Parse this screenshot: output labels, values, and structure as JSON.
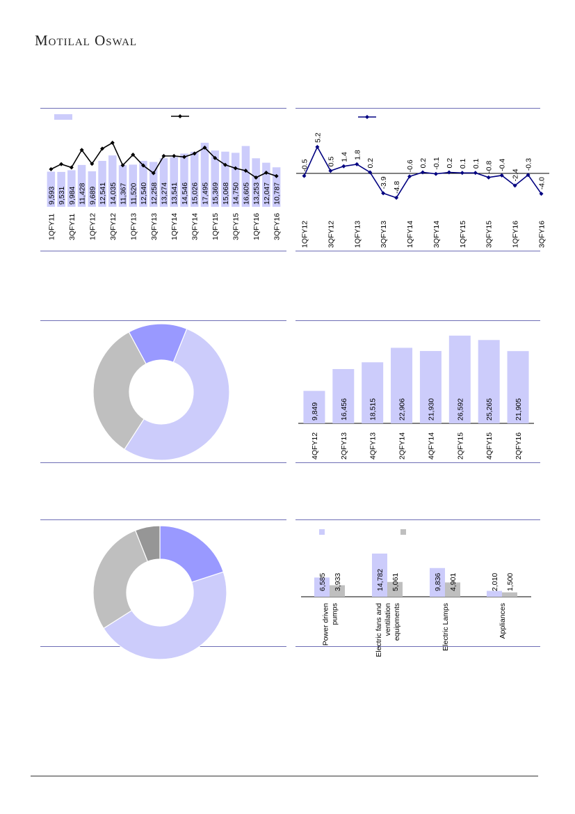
{
  "brand": "Motilal Oswal",
  "colors": {
    "bar": "#ccccfb",
    "bar2": "#9999ff",
    "grey": "#bfbfbf",
    "darkgrey": "#969696",
    "line1": "#000000",
    "line2": "#000080",
    "rule": "#6d6db5"
  },
  "chart_data": [
    {
      "type": "bar",
      "id": "chart1",
      "legend": [
        "",
        ""
      ],
      "categories": [
        "1QFY11",
        "2QFY11",
        "3QFY11",
        "4QFY11",
        "1QFY12",
        "2QFY12",
        "3QFY12",
        "4QFY12",
        "1QFY13",
        "2QFY13",
        "3QFY13",
        "4QFY13",
        "1QFY14",
        "2QFY14",
        "3QFY14",
        "4QFY14",
        "1QFY15",
        "2QFY15",
        "3QFY15",
        "4QFY15",
        "1QFY16",
        "2QFY16",
        "3QFY16"
      ],
      "tick_labels": [
        "1QFY11",
        "",
        "3QFY11",
        "",
        "1QFY12",
        "",
        "3QFY12",
        "",
        "1QFY13",
        "",
        "3QFY13",
        "",
        "1QFY14",
        "",
        "3QFY14",
        "",
        "1QFY15",
        "",
        "3QFY15",
        "",
        "1QFY16",
        "",
        "3QFY16"
      ],
      "series": [
        {
          "values": [
            9593,
            9531,
            9984,
            11428,
            9689,
            12541,
            14035,
            11367,
            11520,
            12540,
            12258,
            13274,
            13541,
            14546,
            15026,
            17495,
            15369,
            15068,
            14750,
            16605,
            13253,
            12047,
            10787
          ],
          "labels": [
            "9,593",
            "9,531",
            "9,984",
            "11,428",
            "9,689",
            "12,541",
            "14,035",
            "11,367",
            "11,520",
            "12,540",
            "12,258",
            "13,274",
            "13,541",
            "14,546",
            "15,026",
            "17,495",
            "15,369",
            "15,068",
            "14,750",
            "16,605",
            "13,253",
            "12,047",
            "10,787"
          ]
        },
        {
          "type": "line",
          "values": [
            5.0,
            10.2,
            6.8,
            24.6,
            10.5,
            26.0,
            32.0,
            9.0,
            19.8,
            8.8,
            1.0,
            18.5,
            18.5,
            17.5,
            21.0,
            27.0,
            16.5,
            9.5,
            6.0,
            3.5,
            -3.5,
            1.5,
            -2.0
          ]
        }
      ]
    },
    {
      "type": "line",
      "id": "chart2",
      "legend": [
        ""
      ],
      "categories": [
        "1QFY12",
        "2QFY12",
        "3QFY12",
        "4QFY12",
        "1QFY13",
        "2QFY13",
        "3QFY13",
        "4QFY13",
        "1QFY14",
        "2QFY14",
        "3QFY14",
        "4QFY14",
        "1QFY15",
        "2QFY15",
        "3QFY15",
        "4QFY15",
        "1QFY16",
        "2QFY16",
        "3QFY16"
      ],
      "tick_labels": [
        "1QFY12",
        "",
        "3QFY12",
        "",
        "1QFY13",
        "",
        "3QFY13",
        "",
        "1QFY14",
        "",
        "3QFY14",
        "",
        "1QFY15",
        "",
        "3QFY15",
        "",
        "1QFY16",
        "",
        "3QFY16"
      ],
      "values": [
        -0.5,
        5.2,
        0.5,
        1.4,
        1.8,
        0.2,
        -3.9,
        -4.8,
        -0.6,
        0.2,
        -0.1,
        0.2,
        0.1,
        0.1,
        -0.8,
        -0.4,
        -2.4,
        -0.3,
        -4.0
      ],
      "labels": [
        "-0.5",
        "5.2",
        "0.5",
        "1.4",
        "1.8",
        "0.2",
        "-3.9",
        "-4.8",
        "-0.6",
        "0.2",
        "-0.1",
        "0.2",
        "0.1",
        "0.1",
        "-0.8",
        "-0.4",
        "-2.4",
        "-0.3",
        "-4.0"
      ]
    },
    {
      "type": "pie",
      "id": "chart3",
      "values": [
        53,
        33,
        14
      ],
      "colors": [
        "#ccccfb",
        "#bfbfbf",
        "#9999ff"
      ]
    },
    {
      "type": "bar",
      "id": "chart4",
      "categories": [
        "4QFY12",
        "2QFY13",
        "4QFY13",
        "2QFY14",
        "4QFY14",
        "2QFY15",
        "4QFY15",
        "2QFY16"
      ],
      "values": [
        9849,
        16456,
        18515,
        22906,
        21930,
        26592,
        25265,
        21905
      ],
      "labels": [
        "9,849",
        "16,456",
        "18,515",
        "22,906",
        "21,930",
        "26,592",
        "25,265",
        "21,905"
      ]
    },
    {
      "type": "pie",
      "id": "chart5",
      "values": [
        20,
        46,
        28,
        6
      ],
      "colors": [
        "#9999ff",
        "#ccccfb",
        "#bfbfbf",
        "#969696"
      ]
    },
    {
      "type": "bar",
      "id": "chart6",
      "legend": [
        "",
        ""
      ],
      "categories": [
        "Power driven pumps",
        "Electric fans and ventilation equipments",
        "Electric Lamps",
        "Appliances"
      ],
      "category_lines": [
        [
          "Power driven",
          "pumps"
        ],
        [
          "Electric fans and",
          "ventilation",
          "equipments"
        ],
        [
          "Electric Lamps"
        ],
        [
          "Appliances"
        ]
      ],
      "series": [
        {
          "values": [
            6585,
            14782,
            9836,
            2010
          ],
          "labels": [
            "6,585",
            "14,782",
            "9,836",
            "2,010"
          ]
        },
        {
          "values": [
            3933,
            5061,
            4901,
            1500
          ],
          "labels": [
            "3,933",
            "5,061",
            "4,901",
            "1,500"
          ]
        }
      ]
    }
  ]
}
